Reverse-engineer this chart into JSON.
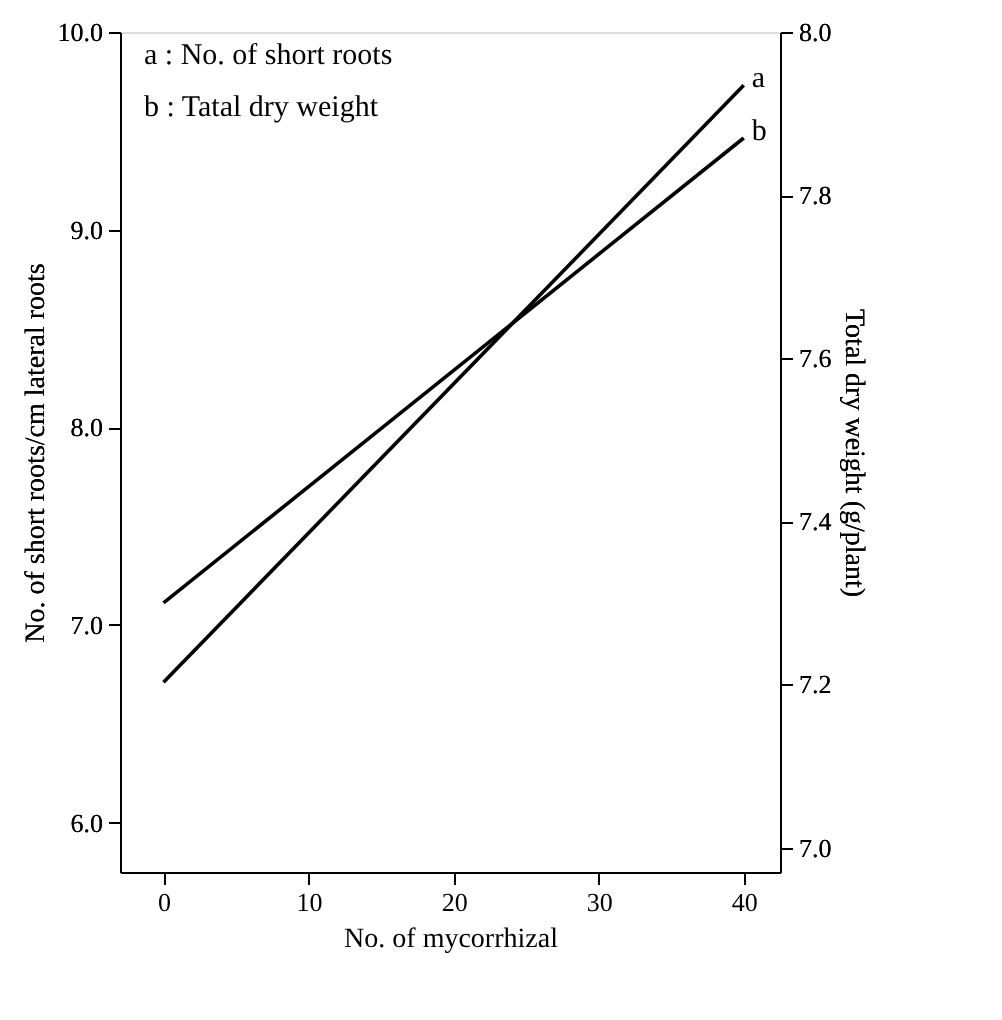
{
  "chart_data": {
    "type": "line",
    "xlabel": "No. of mycorrhizal",
    "ylabel": "No. of short roots/cm lateral roots",
    "y2label": "Total dry weight (g/plant)",
    "x": [
      0,
      40
    ],
    "series": [
      {
        "name": "a",
        "color": "#000000",
        "values": [
          6.71,
          9.73
        ]
      },
      {
        "name": "b",
        "color": "#000000",
        "values": [
          7.3,
          7.87
        ],
        "axis": "y2"
      }
    ],
    "xlim": [
      -3,
      42.5
    ],
    "xticks": [
      0,
      10,
      20,
      30,
      40
    ],
    "ylim": [
      5.75,
      10.0
    ],
    "yticks": [
      {
        "value": 6,
        "label": "6.0"
      },
      {
        "value": 7,
        "label": "7.0"
      },
      {
        "value": 8,
        "label": "8.0"
      },
      {
        "value": 9,
        "label": "9.0"
      },
      {
        "value": 10,
        "label": "10.0"
      }
    ],
    "y2lim": [
      6.97,
      8.0
    ],
    "y2ticks": [
      {
        "value": 7,
        "label": "7.0"
      },
      {
        "value": 7.2,
        "label": "7.2"
      },
      {
        "value": 7.4,
        "label": "7.4"
      },
      {
        "value": 7.6,
        "label": "7.6"
      },
      {
        "value": 7.8,
        "label": "7.8"
      },
      {
        "value": 8,
        "label": "8.0"
      }
    ],
    "annotations": [
      "a : No. of short roots",
      "b : Tatal dry weight"
    ],
    "grid": false,
    "marker": "none",
    "line_style": "solid"
  }
}
